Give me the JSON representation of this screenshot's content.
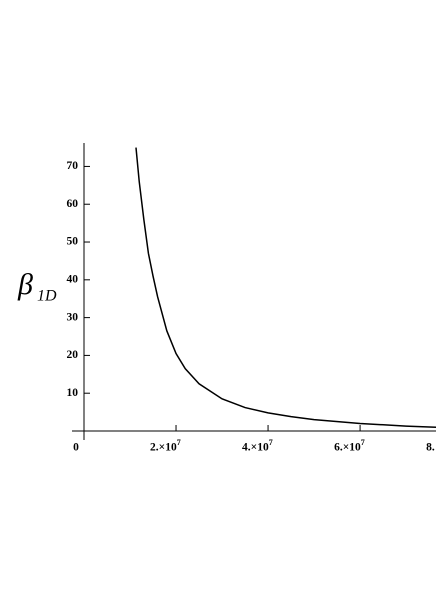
{
  "chart_data": {
    "type": "line",
    "ylabel": "β",
    "ylabel_subscript": "1D",
    "x": [
      11300000,
      12000000,
      13000000,
      14000000,
      15000000,
      16000000,
      18000000,
      20000000,
      22000000,
      25000000,
      30000000,
      35000000,
      40000000,
      45000000,
      50000000,
      60000000,
      70000000,
      76500000
    ],
    "values": [
      75,
      66,
      56,
      47,
      41,
      35.5,
      26.5,
      20.5,
      16.5,
      12.5,
      8.5,
      6.2,
      4.8,
      3.8,
      3.0,
      2.0,
      1.3,
      1.0
    ],
    "color": "#000000",
    "xlim": [
      0,
      76500000
    ],
    "ylim": [
      0,
      76.2
    ],
    "xticks": [
      0,
      {
        "value": 20000000,
        "label": "2.×10^7"
      },
      {
        "value": 40000000,
        "label": "4.×10^7"
      },
      {
        "value": 60000000,
        "label": "6.×10^7"
      },
      {
        "value": 80000000,
        "label": "8."
      }
    ],
    "yticks": [
      10,
      20,
      30,
      40,
      50,
      60,
      70
    ]
  }
}
